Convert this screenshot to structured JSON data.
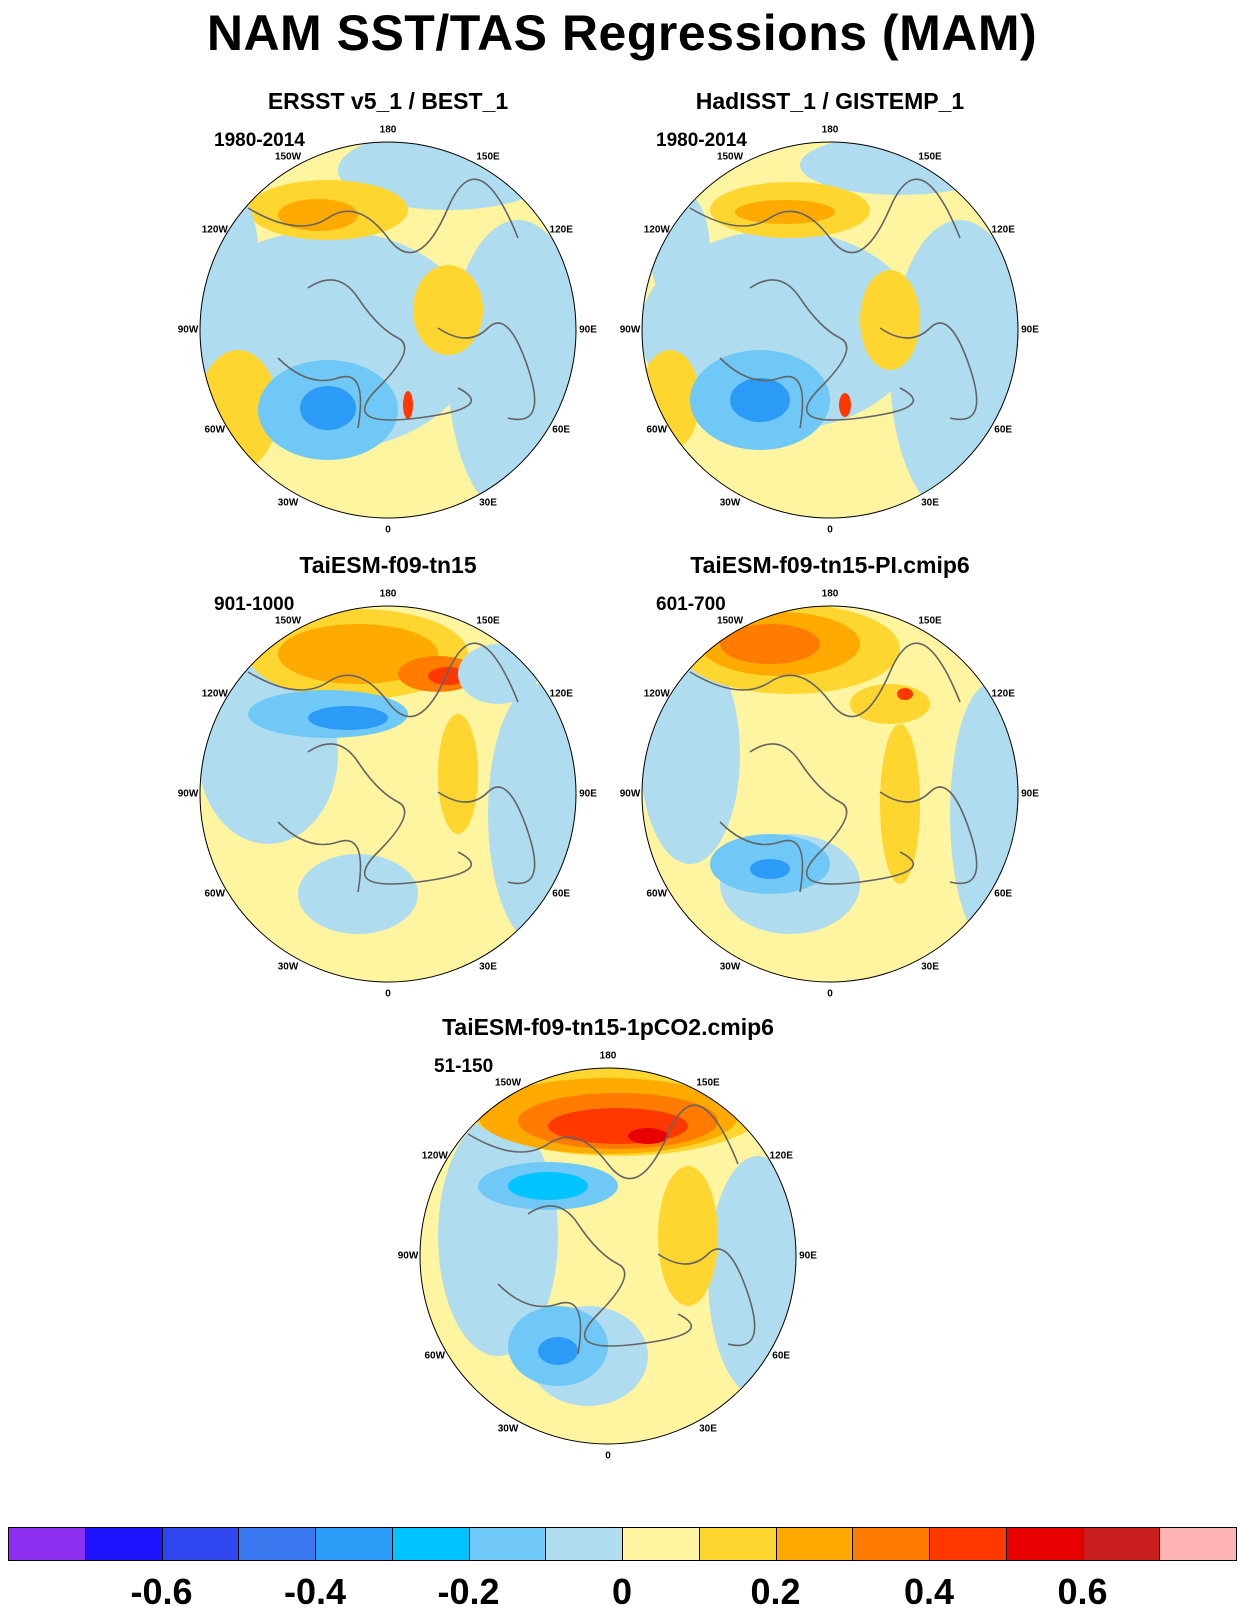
{
  "title": "NAM SST/TAS Regressions (MAM)",
  "panels": [
    {
      "title": "ERSST v5_1 / BEST_1",
      "period": "1980-2014"
    },
    {
      "title": "HadISST_1 / GISTEMP_1",
      "period": "1980-2014"
    },
    {
      "title": "TaiESM-f09-tn15",
      "period": "901-1000"
    },
    {
      "title": "TaiESM-f09-tn15-PI.cmip6",
      "period": "601-700"
    },
    {
      "title": "TaiESM-f09-tn15-1pCO2.cmip6",
      "period": "51-150"
    }
  ],
  "longitude_labels": [
    "180",
    "150E",
    "120E",
    "90E",
    "60E",
    "30E",
    "0",
    "30W",
    "60W",
    "90W",
    "120W",
    "150W"
  ],
  "colorbar": {
    "colors": [
      "#8c2ff0",
      "#1e14ff",
      "#3046f0",
      "#3a78f0",
      "#2b9bf7",
      "#00c4ff",
      "#6fc8f5",
      "#b0dcf0",
      "#fff5a0",
      "#ffd630",
      "#ffaa00",
      "#ff7c00",
      "#ff3800",
      "#e80000",
      "#c81e1e",
      "#ffb4b4"
    ],
    "tick_labels": [
      "-0.6",
      "-0.4",
      "-0.2",
      "0",
      "0.2",
      "0.4",
      "0.6"
    ]
  },
  "palette": {
    "border": "#000000",
    "coast": "#646464"
  }
}
